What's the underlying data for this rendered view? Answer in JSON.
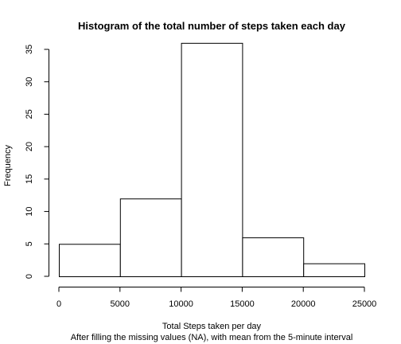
{
  "chart_data": {
    "type": "bar",
    "title": "Histogram of the total number of steps taken each day",
    "xlabel": "Total Steps taken per day",
    "subtitle": "After filling the missing values (NA), with mean from the 5-minute interval",
    "ylabel": "Frequency",
    "bins": [
      {
        "from": 0,
        "to": 5000,
        "count": 5
      },
      {
        "from": 5000,
        "to": 10000,
        "count": 12
      },
      {
        "from": 10000,
        "to": 15000,
        "count": 36
      },
      {
        "from": 15000,
        "to": 20000,
        "count": 6
      },
      {
        "from": 20000,
        "to": 25000,
        "count": 2
      }
    ],
    "xlim": [
      0,
      25000
    ],
    "ylim": [
      0,
      35
    ],
    "x_ticks": [
      0,
      5000,
      10000,
      15000,
      20000,
      25000
    ],
    "x_tick_labels": [
      "0",
      "5000",
      "10000",
      "15000",
      "20000",
      "25000"
    ],
    "y_ticks": [
      0,
      5,
      10,
      15,
      20,
      25,
      30,
      35
    ],
    "y_tick_labels": [
      "0",
      "5",
      "10",
      "15",
      "20",
      "25",
      "30",
      "35"
    ],
    "grid": false,
    "colors": {
      "bar_fill": "#ffffff",
      "bar_stroke": "#000000"
    }
  }
}
